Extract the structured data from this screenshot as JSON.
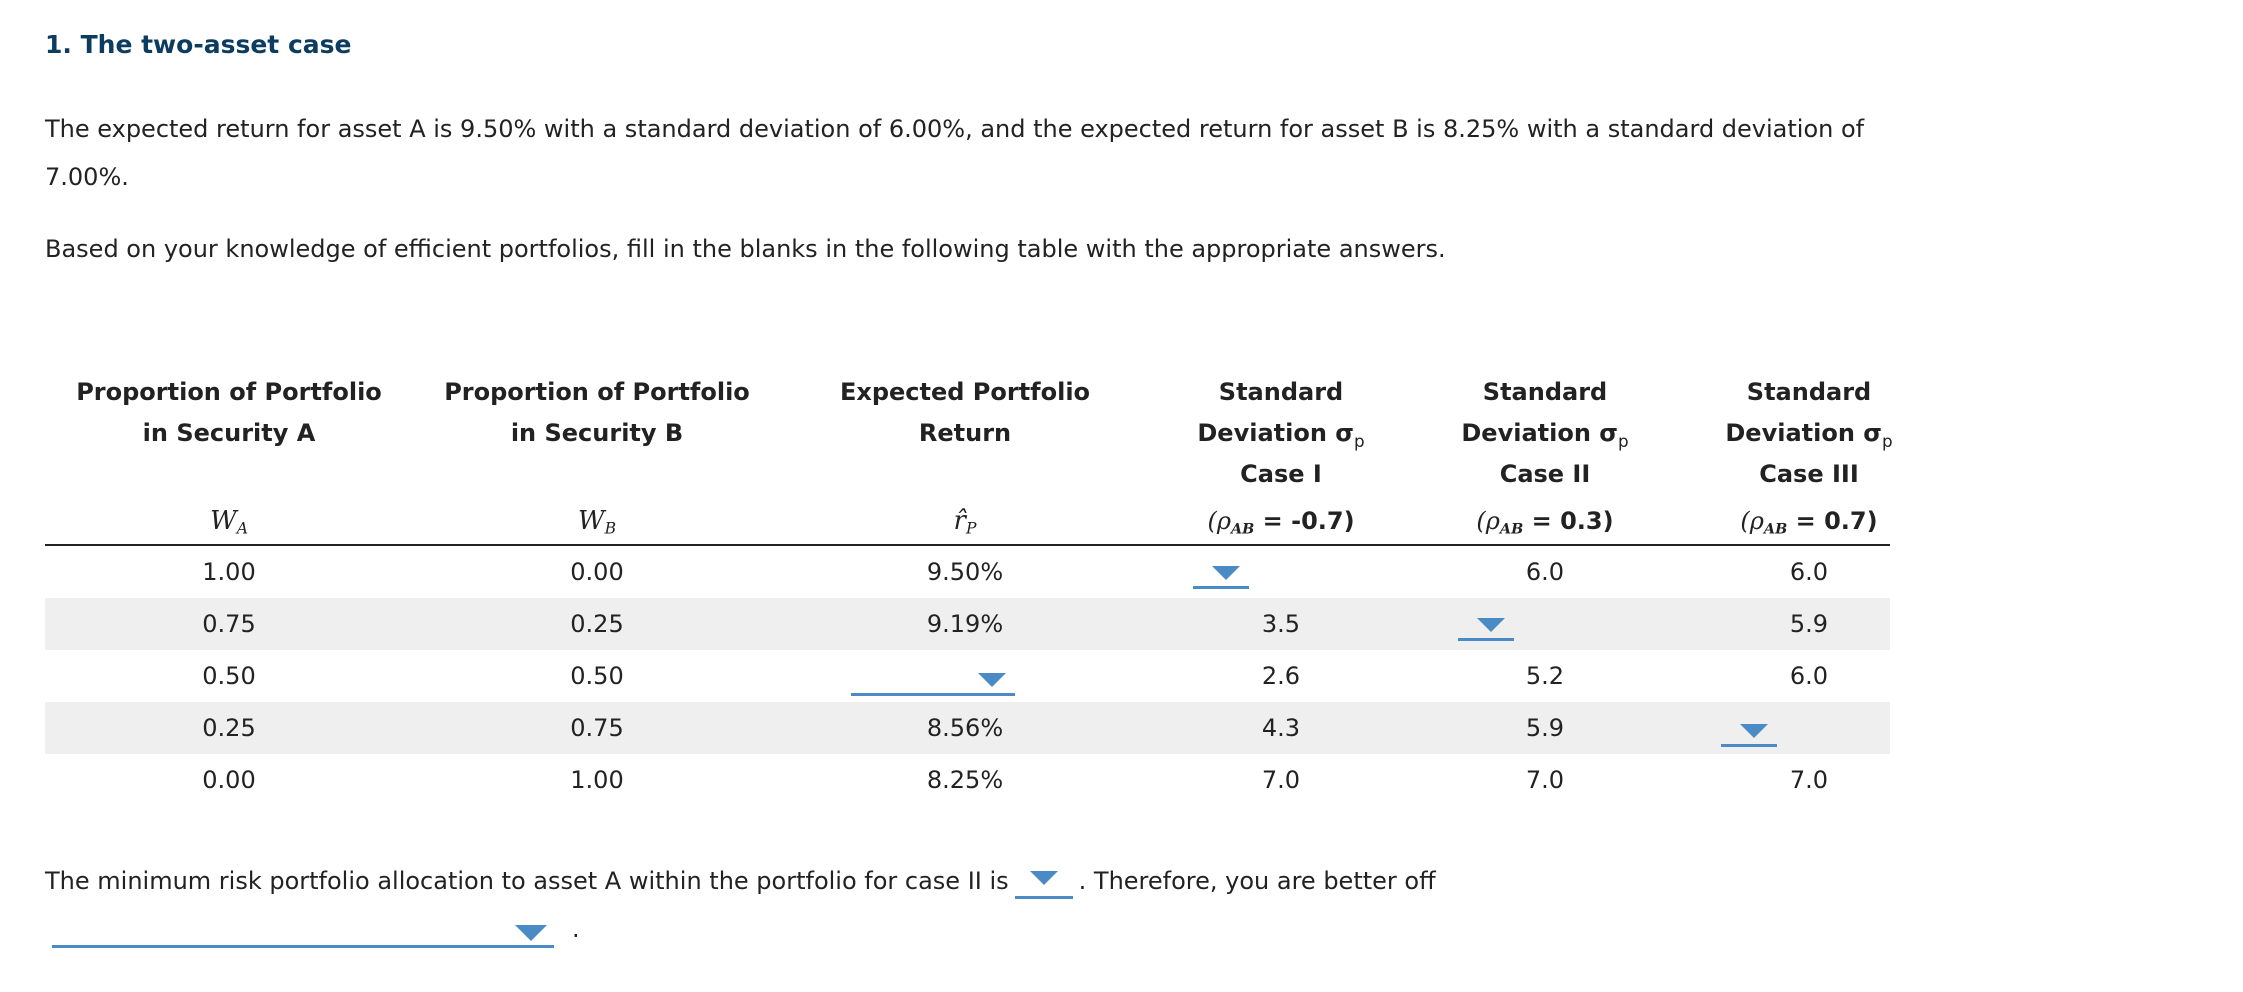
{
  "title": "1. The two-asset case",
  "intro": "The expected return for asset A is 9.50% with a standard deviation of 6.00%, and the expected return for asset B is 8.25% with a standard deviation of 7.00%.",
  "instructions": "Based on your knowledge of efficient portfolios, fill in the blanks in the following table with the appropriate answers.",
  "table": {
    "headers": [
      {
        "line1": "Proportion of Portfolio",
        "line2": "in Security A",
        "line3": "",
        "symbol": "W",
        "symbol_sub": "A"
      },
      {
        "line1": "Proportion of Portfolio",
        "line2": "in Security B",
        "line3": "",
        "symbol": "W",
        "symbol_sub": "B"
      },
      {
        "line1": "Expected Portfolio",
        "line2": "Return",
        "line3": "",
        "symbol": "r̂",
        "symbol_sub": "P"
      },
      {
        "line1": "Standard",
        "line2": "Deviation σ",
        "line2_sub": "p",
        "line3": "Case I",
        "rho_sub": "AB",
        "rho_value": " = -0.7)"
      },
      {
        "line1": "Standard",
        "line2": "Deviation σ",
        "line2_sub": "p",
        "line3": "Case II",
        "rho_sub": "AB",
        "rho_value": " = 0.3)"
      },
      {
        "line1": "Standard",
        "line2": "Deviation σ",
        "line2_sub": "p",
        "line3": "Case III",
        "rho_sub": "AB",
        "rho_value": " = 0.7)"
      }
    ],
    "rho_prefix": "(ρ",
    "rows": [
      {
        "wa": "1.00",
        "wb": "0.00",
        "ret": "9.50%",
        "c1": null,
        "c2": "6.0",
        "c3": "6.0"
      },
      {
        "wa": "0.75",
        "wb": "0.25",
        "ret": "9.19%",
        "c1": "3.5",
        "c2": null,
        "c3": "5.9"
      },
      {
        "wa": "0.50",
        "wb": "0.50",
        "ret": null,
        "c1": "2.6",
        "c2": "5.2",
        "c3": "6.0"
      },
      {
        "wa": "0.25",
        "wb": "0.75",
        "ret": "8.56%",
        "c1": "4.3",
        "c2": "5.9",
        "c3": null
      },
      {
        "wa": "0.00",
        "wb": "1.00",
        "ret": "8.25%",
        "c1": "7.0",
        "c2": "7.0",
        "c3": "7.0"
      }
    ]
  },
  "bottom": {
    "part1": "The minimum risk portfolio allocation to asset A within the portfolio for case II is",
    "part2": ". Therefore, you are better off",
    "period": "."
  },
  "colors": {
    "title": "#0c3c60",
    "dropdown": "#4a8bc6",
    "row_alt": "#efefef"
  }
}
